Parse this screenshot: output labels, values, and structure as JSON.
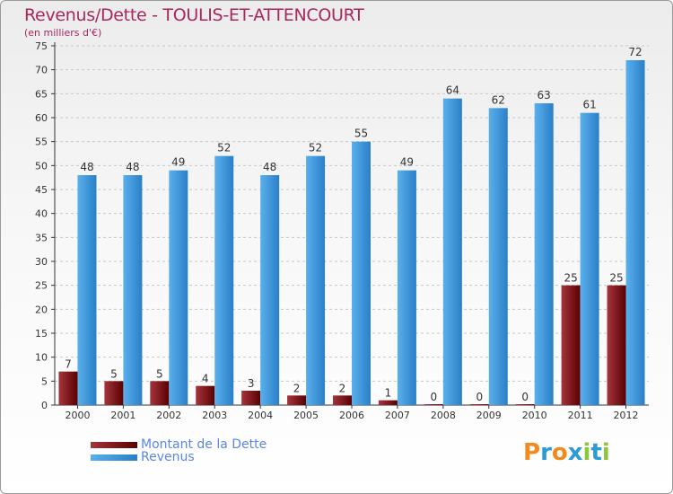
{
  "colors": {
    "debt_dark": "#5a0000",
    "debt_light": "#a5353d",
    "revenue_dark": "#2a7fc7",
    "revenue_light": "#5ab0ec",
    "title": "#a8285c",
    "legend_text": "#5b86e5",
    "grid": "#c8c8c8"
  },
  "header": {
    "title": "Revenus/Dette - TOULIS-ET-ATTENCOURT",
    "subtitle": "(en milliers d'€)"
  },
  "legend": {
    "debt_label": "Montant de la Dette",
    "revenue_label": "Revenus"
  },
  "logo": {
    "text": "Proxiti",
    "letters": [
      "P",
      "r",
      "o",
      "x",
      "i",
      "t",
      "i"
    ],
    "letter_colors": [
      "#f28b1e",
      "#2e9bd6",
      "#f28b1e",
      "#2e9bd6",
      "#8cc63f",
      "#2e9bd6",
      "#8cc63f"
    ]
  },
  "chart_data": {
    "type": "bar",
    "title": "Revenus/Dette - TOULIS-ET-ATTENCOURT",
    "subtitle": "(en milliers d'€)",
    "xlabel": "",
    "ylabel": "",
    "ylim": [
      0,
      75
    ],
    "yticks": [
      0,
      5,
      10,
      15,
      20,
      25,
      30,
      35,
      40,
      45,
      50,
      55,
      60,
      65,
      70,
      75
    ],
    "grid": true,
    "legend_position": "bottom-left",
    "categories": [
      "2000",
      "2001",
      "2002",
      "2003",
      "2004",
      "2005",
      "2006",
      "2007",
      "2008",
      "2009",
      "2010",
      "2011",
      "2012"
    ],
    "series": [
      {
        "name": "Montant de la Dette",
        "values": [
          7,
          5,
          5,
          4,
          3,
          2,
          2,
          1,
          0,
          0,
          0,
          25,
          25
        ]
      },
      {
        "name": "Revenus",
        "values": [
          48,
          48,
          49,
          52,
          48,
          52,
          55,
          49,
          64,
          62,
          63,
          61,
          72
        ]
      }
    ]
  }
}
